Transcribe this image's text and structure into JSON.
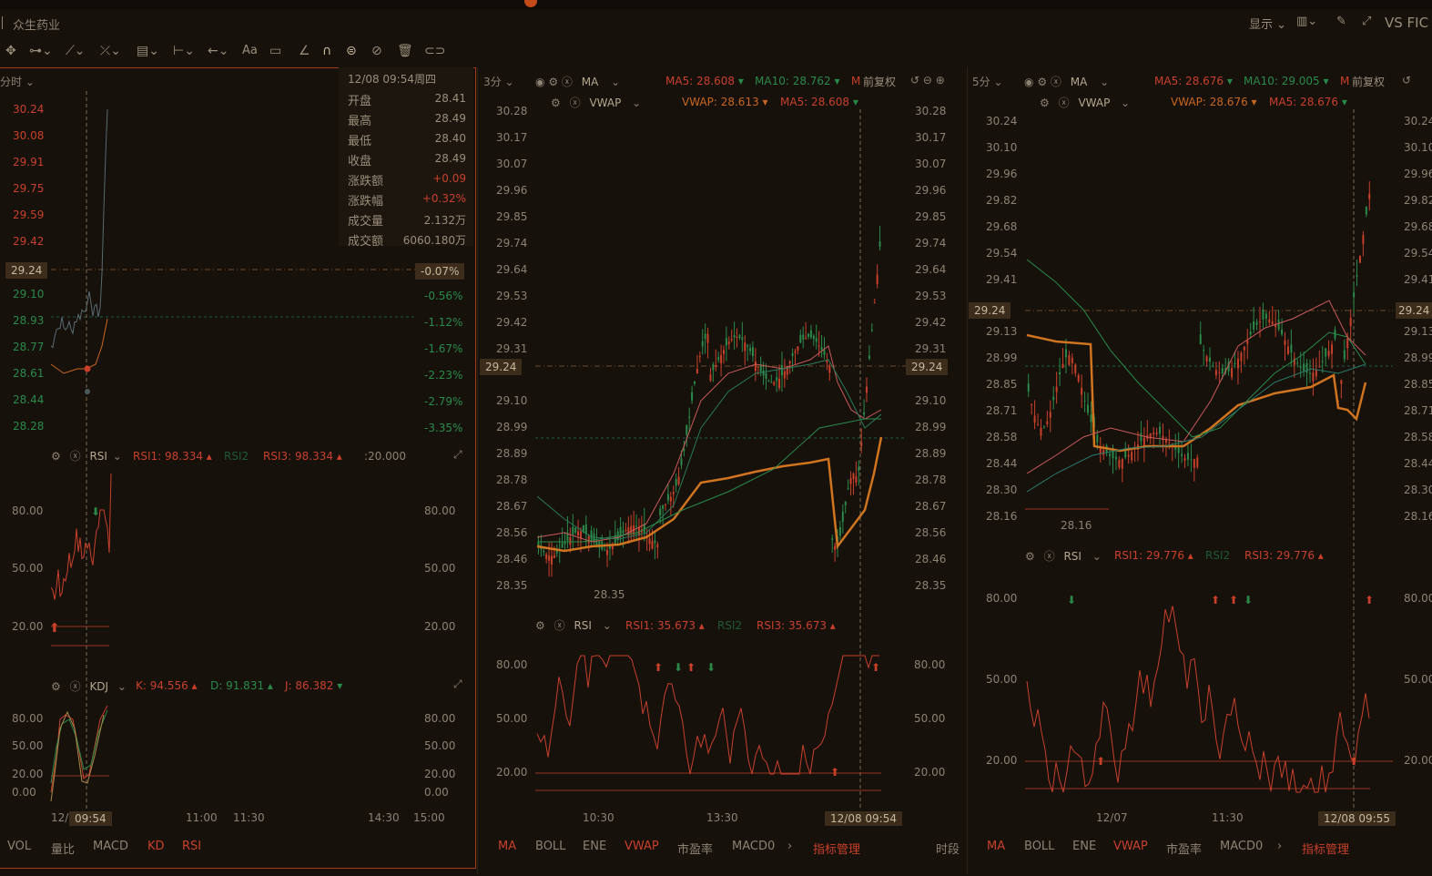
{
  "window": {
    "stock_name": "众生药业",
    "show_label": "显示",
    "vs_label": "VS FIC"
  },
  "panel1": {
    "period": "分时",
    "y_left": [
      "30.24",
      "30.08",
      "29.91",
      "29.75",
      "29.59",
      "29.42",
      "29.24",
      "29.10",
      "28.93",
      "28.77",
      "28.61",
      "28.44",
      "28.28"
    ],
    "y_right_pct": [
      "-0.07%",
      "-0.56%",
      "-1.12%",
      "-1.67%",
      "-2.23%",
      "-2.79%",
      "-3.35%"
    ],
    "current_price": "29.24",
    "tooltip": {
      "date": "12/08 09:54周四",
      "rows": [
        {
          "label": "开盘",
          "value": "28.41"
        },
        {
          "label": "最高",
          "value": "28.49"
        },
        {
          "label": "最低",
          "value": "28.40"
        },
        {
          "label": "收盘",
          "value": "28.49"
        },
        {
          "label": "涨跌额",
          "value": "+0.09"
        },
        {
          "label": "涨跌幅",
          "value": "+0.32%"
        },
        {
          "label": "成交量",
          "value": "2.132万"
        },
        {
          "label": "成交额",
          "value": "6060.180万"
        }
      ]
    },
    "rsi": {
      "name": "RSI",
      "rsi1": "RSI1: 98.334",
      "rsi2": "RSI2",
      "rsi3": "RSI3: 98.334",
      "extra": ":20.000",
      "levels": [
        "80.00",
        "50.00",
        "20.00"
      ]
    },
    "kdj": {
      "name": "KDJ",
      "k": "K: 94.556",
      "d": "D: 91.831",
      "j": "J: 86.382",
      "levels": [
        "80.00",
        "50.00",
        "20.00",
        "0.00"
      ]
    },
    "times": [
      "12/",
      "09:54",
      "11:00",
      "11:30",
      "14:30",
      "15:00"
    ],
    "tabs": [
      "VOL",
      "量比",
      "MACD",
      "KD",
      "RSI"
    ]
  },
  "panel2": {
    "period": "3分",
    "ma_name": "MA",
    "ma5": "MA5: 28.608",
    "ma10": "MA10: 28.762",
    "ma_more": "M",
    "adj": "前复权",
    "vwap_name": "VWAP",
    "vwap": "VWAP: 28.613",
    "vwap_ma5": "MA5: 28.608",
    "y": [
      "30.28",
      "30.17",
      "30.07",
      "29.96",
      "29.85",
      "29.74",
      "29.64",
      "29.53",
      "29.42",
      "29.31",
      "29.24",
      "29.10",
      "28.99",
      "28.89",
      "28.78",
      "28.67",
      "28.56",
      "28.46",
      "28.35"
    ],
    "current_price": "29.24",
    "low_label": "28.35",
    "rsi": {
      "name": "RSI",
      "rsi1": "RSI1: 35.673",
      "rsi2": "RSI2",
      "rsi3": "RSI3: 35.673",
      "levels": [
        "80.00",
        "50.00",
        "20.00"
      ]
    },
    "times": [
      "10:30",
      "13:30",
      "12/08 09:54"
    ],
    "tabs": [
      "MA",
      "BOLL",
      "ENE",
      "VWAP",
      "市盈率",
      "MACD0",
      "指标管理",
      "时段"
    ]
  },
  "panel3": {
    "period": "5分",
    "ma_name": "MA",
    "ma5": "MA5: 28.676",
    "ma10": "MA10: 29.005",
    "ma_more": "M",
    "adj": "前复权",
    "vwap_name": "VWAP",
    "vwap": "VWAP: 28.676",
    "vwap_ma5": "MA5: 28.676",
    "y": [
      "30.24",
      "30.10",
      "29.96",
      "29.82",
      "29.68",
      "29.54",
      "29.41",
      "29.24",
      "29.13",
      "28.99",
      "28.85",
      "28.71",
      "28.58",
      "28.44",
      "28.30",
      "28.16"
    ],
    "y_right": [
      "30.24",
      "30.10",
      "29.96",
      "29.82",
      "29.68",
      "29.54",
      "29.41",
      "29.24",
      "29.13",
      "28.99",
      "28.85",
      "28.71",
      "28.58",
      "28.44",
      "28.30",
      "28.16"
    ],
    "current_price": "29.24",
    "low_label": "28.16",
    "rsi": {
      "name": "RSI",
      "rsi1": "RSI1: 29.776",
      "rsi2": "RSI2",
      "rsi3": "RSI3: 29.776",
      "levels": [
        "80.00",
        "50.00",
        "20.00"
      ]
    },
    "times": [
      "12/07",
      "11:30",
      "12/08 09:55"
    ],
    "tabs": [
      "MA",
      "BOLL",
      "ENE",
      "VWAP",
      "市盈率",
      "MACD0",
      "指标管理"
    ]
  },
  "colors": {
    "red": "#c8402a",
    "green": "#2a8a4a",
    "orange": "#c8661f",
    "bg": "#16110b"
  }
}
